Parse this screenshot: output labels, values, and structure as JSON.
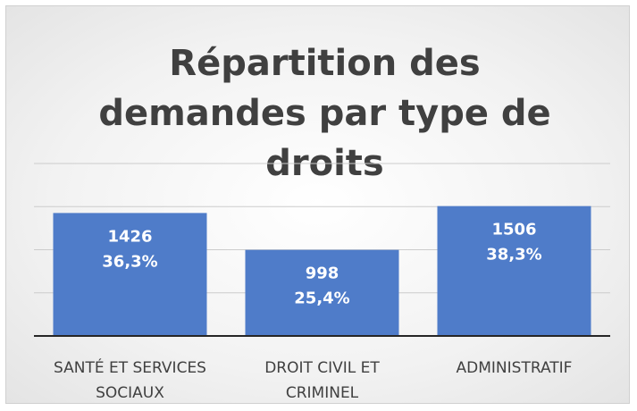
{
  "chart_data": {
    "type": "bar",
    "title": "Répartition des demandes par type de droits",
    "categories": [
      "SANTÉ ET SERVICES SOCIAUX",
      "DROIT CIVIL ET CRIMINEL",
      "ADMINISTRATIF"
    ],
    "values": [
      1426,
      998,
      1506
    ],
    "percent_labels": [
      "36,3%",
      "25,4%",
      "38,3%"
    ],
    "color": "#4f7cc9",
    "ylim": [
      0,
      2000
    ],
    "yticks": [
      0,
      500,
      1000,
      1500,
      2000
    ],
    "grid": true
  }
}
